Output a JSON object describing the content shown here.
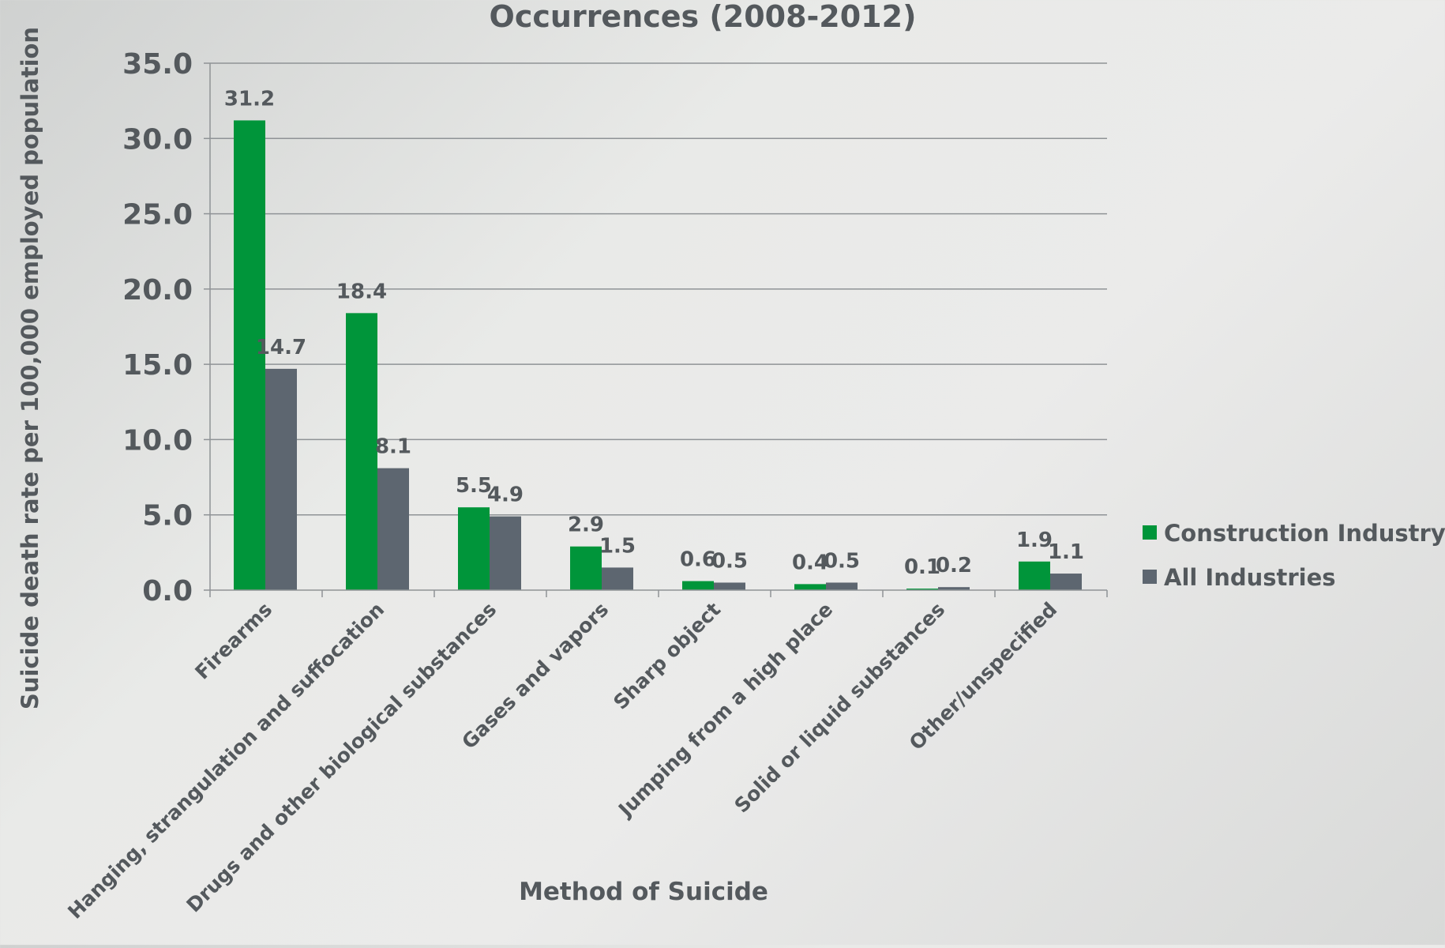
{
  "chart_data": {
    "type": "bar",
    "title": "Occurrences (2008-2012)",
    "xlabel": "Method of Suicide",
    "ylabel": "Suicide death rate per 100,000 employed population",
    "ylim": [
      0,
      35
    ],
    "yticks": [
      "0.0",
      "5.0",
      "10.0",
      "15.0",
      "20.0",
      "25.0",
      "30.0",
      "35.0"
    ],
    "grid": true,
    "legend_position": "right",
    "categories": [
      "Firearms",
      "Hanging, strangulation and suffocation",
      "Drugs and other biological substances",
      "Gases and vapors",
      "Sharp object",
      "Jumping from a high place",
      "Solid or liquid substances",
      "Other/unspecified"
    ],
    "series": [
      {
        "name": "Construction Industry",
        "color": "#00953a",
        "values": [
          31.2,
          18.4,
          5.5,
          2.9,
          0.6,
          0.4,
          0.1,
          1.9
        ],
        "labels": [
          "31.2",
          "18.4",
          "5.5",
          "2.9",
          "0.6",
          "0.4",
          "0.1",
          "1.9"
        ]
      },
      {
        "name": "All Industries",
        "color": "#5d6670",
        "values": [
          14.7,
          8.1,
          4.9,
          1.5,
          0.5,
          0.5,
          0.2,
          1.1
        ],
        "labels": [
          "14.7",
          "8.1",
          "4.9",
          "1.5",
          "0.5",
          "0.5",
          "0.2",
          "1.1"
        ]
      }
    ]
  }
}
